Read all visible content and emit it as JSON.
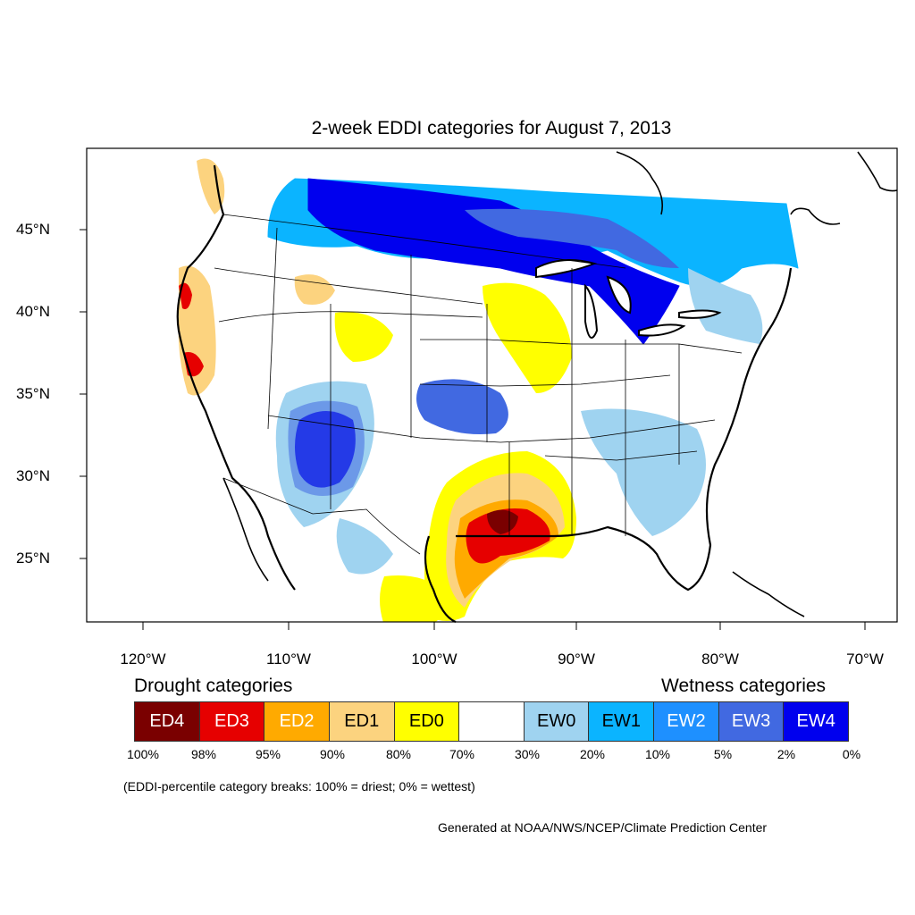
{
  "title": "2-week EDDI categories for August 7, 2013",
  "lon_labels": [
    "120°W",
    "110°W",
    "100°W",
    "90°W",
    "80°W",
    "70°W"
  ],
  "lat_labels": [
    "45°N",
    "40°N",
    "35°N",
    "30°N",
    "25°N"
  ],
  "legend": {
    "drought_heading": "Drought categories",
    "wetness_heading": "Wetness categories",
    "categories": [
      {
        "label": "ED4",
        "color": "#7a0000",
        "text_color": "#ffffff"
      },
      {
        "label": "ED3",
        "color": "#e60000",
        "text_color": "#ffffff"
      },
      {
        "label": "ED2",
        "color": "#ffaa00",
        "text_color": "#ffffff"
      },
      {
        "label": "ED1",
        "color": "#fcd37f",
        "text_color": "#000000"
      },
      {
        "label": "ED0",
        "color": "#ffff00",
        "text_color": "#000000"
      },
      {
        "label": "",
        "color": "#ffffff",
        "text_color": "#000000"
      },
      {
        "label": "EW0",
        "color": "#9fd3f0",
        "text_color": "#000000"
      },
      {
        "label": "EW1",
        "color": "#0bb4ff",
        "text_color": "#000000"
      },
      {
        "label": "EW2",
        "color": "#1e90ff",
        "text_color": "#ffffff"
      },
      {
        "label": "EW3",
        "color": "#4169e1",
        "text_color": "#ffffff"
      },
      {
        "label": "EW4",
        "color": "#0000ee",
        "text_color": "#ffffff"
      }
    ],
    "percent_labels": [
      "100%",
      "98%",
      "95%",
      "90%",
      "80%",
      "70%",
      "30%",
      "20%",
      "10%",
      "5%",
      "2%",
      "0%"
    ]
  },
  "breaks_note": "(EDDI-percentile category breaks: 100% = driest; 0% = wettest)",
  "credit": "Generated at NOAA/NWS/NCEP/Climate Prediction Center"
}
